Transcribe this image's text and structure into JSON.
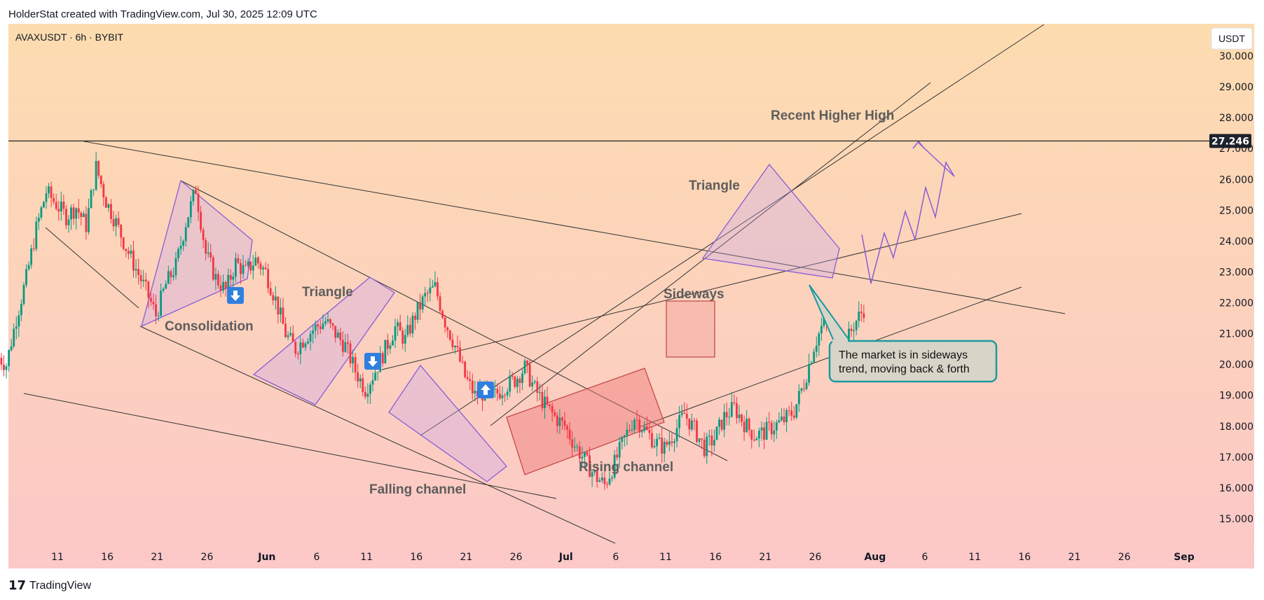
{
  "header": {
    "attribution": "HolderStat created with TradingView.com, Jul 30, 2025 12:09 UTC",
    "symbol_info": "AVAXUSDT · 6h · BYBIT",
    "unit_label": "USDT"
  },
  "footer": {
    "brand": "TradingView"
  },
  "colors": {
    "bg_top": "#fddcb0",
    "bg_bottom": "#fcc8c8",
    "up": "#089981",
    "down": "#f23645",
    "pattern_purple": "#8a5cd6",
    "pattern_red": "#c44a4a",
    "arrow_blue": "#2f7fe0",
    "note_border": "#1a9aa0",
    "note_fill": "#d8d4c8"
  },
  "chart_data": {
    "type": "line",
    "title": "",
    "ylim": [
      14.0,
      31.0
    ],
    "y_ticks": [
      "30.000",
      "29.000",
      "28.000",
      "27.000",
      "26.000",
      "25.000",
      "24.000",
      "23.000",
      "22.000",
      "21.000",
      "20.000",
      "19.000",
      "18.000",
      "17.000",
      "16.000",
      "15.000"
    ],
    "y_tick_values": [
      30,
      29,
      28,
      27,
      26,
      25,
      24,
      23,
      22,
      21,
      20,
      19,
      18,
      17,
      16,
      15
    ],
    "x_range": [
      "2025-05-05",
      "2025-09-05"
    ],
    "x_ticks": [
      {
        "date": "2025-05-11",
        "label": "11",
        "month": false
      },
      {
        "date": "2025-05-16",
        "label": "16",
        "month": false
      },
      {
        "date": "2025-05-21",
        "label": "21",
        "month": false
      },
      {
        "date": "2025-05-26",
        "label": "26",
        "month": false
      },
      {
        "date": "2025-06-01",
        "label": "Jun",
        "month": true
      },
      {
        "date": "2025-06-06",
        "label": "6",
        "month": false
      },
      {
        "date": "2025-06-11",
        "label": "11",
        "month": false
      },
      {
        "date": "2025-06-16",
        "label": "16",
        "month": false
      },
      {
        "date": "2025-06-21",
        "label": "21",
        "month": false
      },
      {
        "date": "2025-06-26",
        "label": "26",
        "month": false
      },
      {
        "date": "2025-07-01",
        "label": "Jul",
        "month": true
      },
      {
        "date": "2025-07-06",
        "label": "6",
        "month": false
      },
      {
        "date": "2025-07-11",
        "label": "11",
        "month": false
      },
      {
        "date": "2025-07-16",
        "label": "16",
        "month": false
      },
      {
        "date": "2025-07-21",
        "label": "21",
        "month": false
      },
      {
        "date": "2025-07-26",
        "label": "26",
        "month": false
      },
      {
        "date": "2025-08-01",
        "label": "Aug",
        "month": true
      },
      {
        "date": "2025-08-06",
        "label": "6",
        "month": false
      },
      {
        "date": "2025-08-11",
        "label": "11",
        "month": false
      },
      {
        "date": "2025-08-16",
        "label": "16",
        "month": false
      },
      {
        "date": "2025-08-21",
        "label": "21",
        "month": false
      },
      {
        "date": "2025-08-26",
        "label": "26",
        "month": false
      },
      {
        "date": "2025-09-01",
        "label": "Sep",
        "month": true
      }
    ],
    "price_path": [
      [
        "2025-05-05",
        20.3
      ],
      [
        "2025-05-06",
        20.0
      ],
      [
        "2025-05-07",
        21.5
      ],
      [
        "2025-05-08",
        22.8
      ],
      [
        "2025-05-09",
        24.4
      ],
      [
        "2025-05-10",
        25.6
      ],
      [
        "2025-05-11",
        25.2
      ],
      [
        "2025-05-12",
        24.8
      ],
      [
        "2025-05-13",
        25.1
      ],
      [
        "2025-05-14",
        24.5
      ],
      [
        "2025-05-15",
        26.4
      ],
      [
        "2025-05-16",
        25.3
      ],
      [
        "2025-05-17",
        24.6
      ],
      [
        "2025-05-18",
        23.8
      ],
      [
        "2025-05-19",
        23.1
      ],
      [
        "2025-05-20",
        22.4
      ],
      [
        "2025-05-21",
        21.6
      ],
      [
        "2025-05-22",
        22.6
      ],
      [
        "2025-05-23",
        23.2
      ],
      [
        "2025-05-24",
        24.6
      ],
      [
        "2025-05-25",
        25.7
      ],
      [
        "2025-05-26",
        23.6
      ],
      [
        "2025-05-27",
        22.8
      ],
      [
        "2025-05-28",
        22.4
      ],
      [
        "2025-05-29",
        23.3
      ],
      [
        "2025-05-30",
        23.0
      ],
      [
        "2025-05-31",
        23.4
      ],
      [
        "2025-06-01",
        23.0
      ],
      [
        "2025-06-02",
        22.1
      ],
      [
        "2025-06-03",
        21.0
      ],
      [
        "2025-06-04",
        20.5
      ],
      [
        "2025-06-05",
        20.9
      ],
      [
        "2025-06-06",
        21.2
      ],
      [
        "2025-06-07",
        21.4
      ],
      [
        "2025-06-08",
        21.0
      ],
      [
        "2025-06-09",
        20.6
      ],
      [
        "2025-06-10",
        19.8
      ],
      [
        "2025-06-11",
        19.2
      ],
      [
        "2025-06-12",
        19.8
      ],
      [
        "2025-06-13",
        20.5
      ],
      [
        "2025-06-14",
        21.2
      ],
      [
        "2025-06-15",
        20.8
      ],
      [
        "2025-06-16",
        21.6
      ],
      [
        "2025-06-17",
        22.2
      ],
      [
        "2025-06-18",
        22.5
      ],
      [
        "2025-06-19",
        21.4
      ],
      [
        "2025-06-20",
        20.6
      ],
      [
        "2025-06-21",
        19.6
      ],
      [
        "2025-06-22",
        19.0
      ],
      [
        "2025-06-23",
        19.1
      ],
      [
        "2025-06-24",
        19.0
      ],
      [
        "2025-06-25",
        19.3
      ],
      [
        "2025-06-26",
        19.5
      ],
      [
        "2025-06-27",
        19.9
      ],
      [
        "2025-06-28",
        19.2
      ],
      [
        "2025-06-29",
        18.7
      ],
      [
        "2025-06-30",
        18.3
      ],
      [
        "2025-07-01",
        18.0
      ],
      [
        "2025-07-02",
        17.4
      ],
      [
        "2025-07-03",
        16.9
      ],
      [
        "2025-07-04",
        16.4
      ],
      [
        "2025-07-05",
        16.1
      ],
      [
        "2025-07-06",
        16.8
      ],
      [
        "2025-07-07",
        17.6
      ],
      [
        "2025-07-08",
        18.3
      ],
      [
        "2025-07-09",
        17.9
      ],
      [
        "2025-07-10",
        17.5
      ],
      [
        "2025-07-11",
        17.3
      ],
      [
        "2025-07-12",
        17.8
      ],
      [
        "2025-07-13",
        18.4
      ],
      [
        "2025-07-14",
        17.9
      ],
      [
        "2025-07-15",
        17.3
      ],
      [
        "2025-07-16",
        17.6
      ],
      [
        "2025-07-17",
        18.3
      ],
      [
        "2025-07-18",
        18.6
      ],
      [
        "2025-07-19",
        18.1
      ],
      [
        "2025-07-20",
        17.7
      ],
      [
        "2025-07-21",
        17.8
      ],
      [
        "2025-07-22",
        18.0
      ],
      [
        "2025-07-23",
        18.2
      ],
      [
        "2025-07-24",
        18.5
      ],
      [
        "2025-07-25",
        19.4
      ],
      [
        "2025-07-26",
        20.6
      ],
      [
        "2025-07-27",
        21.4
      ],
      [
        "2025-07-28",
        21.1
      ],
      [
        "2025-07-29",
        20.5
      ],
      [
        "2025-07-30",
        21.3
      ],
      [
        "2025-07-31",
        21.8
      ]
    ],
    "series": [
      {
        "name": "",
        "values": [
          20.3,
          20.0,
          21.5,
          22.8,
          24.4,
          25.6,
          25.2,
          24.8,
          25.1,
          24.5,
          26.4,
          25.3,
          24.6,
          23.8,
          23.1,
          22.4,
          21.6,
          22.6,
          23.2,
          24.6,
          25.7,
          23.6,
          22.8,
          22.4,
          23.3,
          23.0,
          23.4,
          23.0,
          22.1,
          21.0,
          20.5,
          20.9,
          21.2,
          21.4,
          21.0,
          20.6,
          19.8,
          19.2,
          19.8,
          20.5,
          21.2,
          20.8,
          21.6,
          22.2,
          22.5,
          21.4,
          20.6,
          19.6,
          19.0,
          19.1,
          19.0,
          19.3,
          19.5,
          19.9,
          19.2,
          18.7,
          18.3,
          18.0,
          17.4,
          16.9,
          16.4,
          16.1,
          16.8,
          17.6,
          18.3,
          17.9,
          17.5,
          17.3,
          17.8,
          18.4,
          17.9,
          17.3,
          17.6,
          18.3,
          18.6,
          18.1,
          17.7,
          17.8,
          18.0,
          18.2,
          18.5,
          19.4,
          20.6,
          21.4,
          21.1,
          20.5,
          21.3,
          21.8
        ]
      }
    ],
    "horizontal_level": {
      "label": "27.246",
      "value": 27.246
    },
    "annotations": [
      {
        "text": "Recent Higher High"
      },
      {
        "text": "Triangle"
      },
      {
        "text": "Triangle"
      },
      {
        "text": "Sideways"
      },
      {
        "text": "Consolidation"
      },
      {
        "text": "Falling channel"
      },
      {
        "text": "Rising channel"
      }
    ],
    "note": {
      "lines": [
        "The market is in sideways",
        "trend, moving back & forth"
      ]
    },
    "grid": false,
    "legend": "none"
  }
}
